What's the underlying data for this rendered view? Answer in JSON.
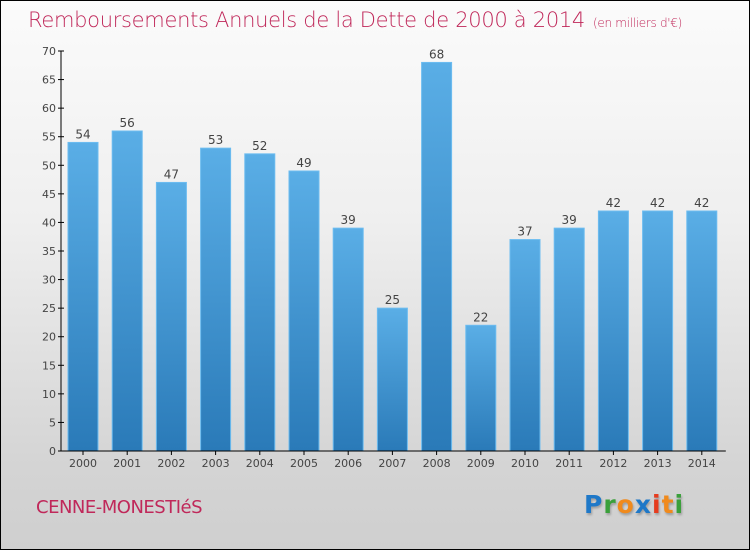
{
  "header": {
    "title": "Remboursements Annuels de la Dette de 2000 à 2014",
    "unit": "(en milliers d'€)"
  },
  "footer": {
    "commune": "CENNE-MONESTIéS",
    "logo": {
      "letters": [
        "P",
        "r",
        "o",
        "x",
        "i",
        "t",
        "i"
      ],
      "colors": [
        "#1e78c8",
        "#3aa03a",
        "#f08a1c",
        "#1e78c8",
        "#e63c1e",
        "#f08a1c",
        "#3aa03a"
      ]
    }
  },
  "colors": {
    "title": "#c0285a",
    "bar_top": "#5aaee6",
    "bar_bottom": "#2a7ab8",
    "axis": "#000000",
    "label": "#444444"
  },
  "chart_data": {
    "type": "bar",
    "title": "Remboursements Annuels de la Dette de 2000 à 2014",
    "subtitle": "(en milliers d'€)",
    "xlabel": "",
    "ylabel": "",
    "categories": [
      "2000",
      "2001",
      "2002",
      "2003",
      "2004",
      "2005",
      "2006",
      "2007",
      "2008",
      "2009",
      "2010",
      "2011",
      "2012",
      "2013",
      "2014"
    ],
    "values": [
      54,
      56,
      47,
      53,
      52,
      49,
      39,
      25,
      68,
      22,
      37,
      39,
      42,
      42,
      42
    ],
    "ylim": [
      0,
      70
    ],
    "yticks": [
      0,
      5,
      10,
      15,
      20,
      25,
      30,
      35,
      40,
      45,
      50,
      55,
      60,
      65,
      70
    ],
    "data_labels": true,
    "grid": false,
    "legend": "none"
  }
}
